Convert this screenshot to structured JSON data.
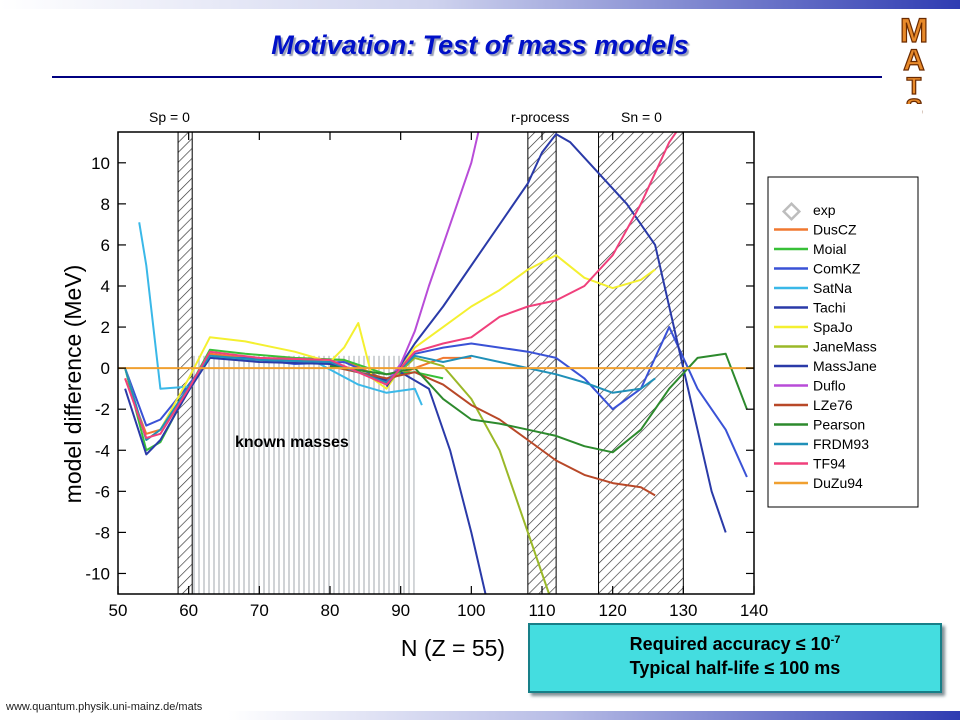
{
  "slide": {
    "title": "Motivation: Test of mass models",
    "logo_text": "MATS",
    "footer_url": "www.quantum.physik.uni-mainz.de/mats",
    "callout": {
      "line1_prefix": "Required accuracy ",
      "line1_sym": "≤",
      "line1_base": " 10",
      "line1_exp": "-7",
      "line2_prefix": "Typical half-life ",
      "line2_sym": "≤",
      "line2_rest": " 100 ms"
    },
    "accent_colors": {
      "title": "#0010c8",
      "callout_bg": "#44dde0",
      "bar": "#2f3cb2"
    }
  },
  "chart_data": {
    "type": "line",
    "xlabel": "N (Z = 55)",
    "ylabel": "model difference (MeV)",
    "xlim": [
      50,
      140
    ],
    "ylim": [
      -11,
      11.5
    ],
    "xticks": [
      50,
      60,
      70,
      80,
      90,
      100,
      110,
      120,
      130,
      140
    ],
    "yticks": [
      -10,
      -8,
      -6,
      -4,
      -2,
      0,
      2,
      4,
      6,
      8,
      10
    ],
    "grid": false,
    "legend_position": "right",
    "annotations": {
      "sp_label": "Sp = 0",
      "rprocess_label": "r-process",
      "sn_label": "Sn = 0",
      "known_label": "known masses"
    },
    "regions": [
      {
        "name": "Sp = 0",
        "x": [
          58.5,
          60.5
        ],
        "style": "hatched"
      },
      {
        "name": "known masses",
        "x": [
          60.5,
          92
        ],
        "style": "grey"
      },
      {
        "name": "r-process",
        "x": [
          108,
          112
        ],
        "style": "hatched"
      },
      {
        "name": "Sn = 0",
        "x": [
          118,
          130
        ],
        "style": "hatched"
      }
    ],
    "series": [
      {
        "name": "exp",
        "color": "#bdbdbd",
        "points": []
      },
      {
        "name": "DusCZ",
        "color": "#f07830",
        "points": [
          [
            51,
            -0.5
          ],
          [
            54,
            -3.2
          ],
          [
            56,
            -3
          ],
          [
            60,
            -1
          ],
          [
            63,
            0.7
          ],
          [
            68,
            0.5
          ],
          [
            75,
            0.4
          ],
          [
            82,
            0.4
          ],
          [
            88,
            -0.6
          ],
          [
            92,
            0
          ],
          [
            96,
            0.5
          ],
          [
            100,
            0.5
          ]
        ]
      },
      {
        "name": "Moial",
        "color": "#38c038",
        "points": [
          [
            51,
            0
          ],
          [
            54,
            -4
          ],
          [
            56,
            -3.6
          ],
          [
            60,
            -1
          ],
          [
            63,
            0.9
          ],
          [
            68,
            0.7
          ],
          [
            75,
            0.5
          ],
          [
            82,
            0.4
          ],
          [
            88,
            -0.3
          ],
          [
            92,
            -0.2
          ],
          [
            96,
            -0.5
          ]
        ]
      },
      {
        "name": "ComKZ",
        "color": "#3a52d6",
        "points": [
          [
            51,
            0
          ],
          [
            54,
            -2.8
          ],
          [
            56,
            -2.5
          ],
          [
            60,
            -0.8
          ],
          [
            63,
            0.5
          ],
          [
            68,
            0.5
          ],
          [
            75,
            0.2
          ],
          [
            82,
            0.3
          ],
          [
            88,
            -0.6
          ],
          [
            92,
            0.7
          ],
          [
            96,
            1
          ],
          [
            100,
            1.2
          ],
          [
            104,
            1
          ],
          [
            108,
            0.8
          ],
          [
            112,
            0.5
          ],
          [
            116,
            -0.5
          ],
          [
            120,
            -2
          ],
          [
            124,
            -1
          ],
          [
            128,
            2
          ],
          [
            132,
            -1
          ],
          [
            136,
            -3
          ],
          [
            139,
            -5.3
          ]
        ]
      },
      {
        "name": "SatNa",
        "color": "#3ab8e8",
        "points": [
          [
            53,
            7.1
          ],
          [
            54,
            5
          ],
          [
            56,
            -1
          ],
          [
            60,
            -0.9
          ],
          [
            63,
            0.5
          ],
          [
            70,
            0.4
          ],
          [
            78,
            0.3
          ],
          [
            84,
            -0.8
          ],
          [
            88,
            -1.2
          ],
          [
            92,
            -1
          ],
          [
            93,
            -1.8
          ]
        ]
      },
      {
        "name": "Tachi",
        "color": "#2a3aa8",
        "points": [
          [
            51,
            -1
          ],
          [
            54,
            -4.2
          ],
          [
            56,
            -3.5
          ],
          [
            60,
            -1.1
          ],
          [
            63,
            0.5
          ],
          [
            70,
            0.3
          ],
          [
            80,
            0.2
          ],
          [
            88,
            -0.6
          ],
          [
            90,
            -0.2
          ],
          [
            94,
            -1
          ],
          [
            97,
            -4
          ],
          [
            100,
            -8
          ],
          [
            102,
            -11
          ]
        ]
      },
      {
        "name": "SpaJo",
        "color": "#f4f030",
        "points": [
          [
            51,
            0
          ],
          [
            54,
            -3.5
          ],
          [
            56,
            -3
          ],
          [
            60,
            -0.5
          ],
          [
            63,
            1.5
          ],
          [
            68,
            1.3
          ],
          [
            75,
            0.8
          ],
          [
            80,
            0.3
          ],
          [
            82,
            1
          ],
          [
            84,
            2.2
          ],
          [
            86,
            -0.5
          ],
          [
            88,
            -1
          ],
          [
            92,
            1
          ],
          [
            96,
            2
          ],
          [
            100,
            3
          ],
          [
            104,
            3.8
          ],
          [
            108,
            4.8
          ],
          [
            112,
            5.5
          ],
          [
            116,
            4.4
          ],
          [
            120,
            3.9
          ],
          [
            124,
            4.3
          ],
          [
            126,
            4.8
          ]
        ]
      },
      {
        "name": "JaneMass",
        "color": "#9ab828",
        "points": [
          [
            88,
            -0.8
          ],
          [
            92,
            0.5
          ],
          [
            96,
            0.1
          ],
          [
            100,
            -1.5
          ],
          [
            104,
            -4
          ],
          [
            108,
            -8
          ],
          [
            110,
            -10
          ],
          [
            111,
            -11
          ]
        ]
      },
      {
        "name": "MassJane",
        "color": "#2a3aa8",
        "points": [
          [
            88,
            -0.9
          ],
          [
            92,
            1.2
          ],
          [
            96,
            3
          ],
          [
            100,
            5
          ],
          [
            104,
            7
          ],
          [
            108,
            9
          ],
          [
            110,
            10.5
          ],
          [
            112,
            11.4
          ],
          [
            114,
            11
          ],
          [
            118,
            9.5
          ],
          [
            122,
            8
          ],
          [
            126,
            6
          ],
          [
            128,
            3
          ],
          [
            130,
            0
          ],
          [
            132,
            -3
          ],
          [
            134,
            -6
          ],
          [
            136,
            -8
          ]
        ]
      },
      {
        "name": "Duflo",
        "color": "#b84cd8",
        "points": [
          [
            88,
            -0.7
          ],
          [
            90,
            0.2
          ],
          [
            92,
            1.8
          ],
          [
            94,
            4
          ],
          [
            96,
            6
          ],
          [
            98,
            8
          ],
          [
            100,
            10
          ],
          [
            101,
            11.5
          ]
        ]
      },
      {
        "name": "LZe76",
        "color": "#b84828",
        "points": [
          [
            80,
            0.1
          ],
          [
            88,
            -0.5
          ],
          [
            92,
            -0.2
          ],
          [
            96,
            -0.8
          ],
          [
            100,
            -1.8
          ],
          [
            104,
            -2.5
          ],
          [
            108,
            -3.5
          ],
          [
            112,
            -4.5
          ],
          [
            116,
            -5.2
          ],
          [
            120,
            -5.6
          ],
          [
            124,
            -5.8
          ],
          [
            126,
            -6.2
          ]
        ]
      },
      {
        "name": "Pearson",
        "color": "#2d8a2d",
        "points": [
          [
            80,
            0.1
          ],
          [
            88,
            -0.3
          ],
          [
            92,
            0
          ],
          [
            96,
            -1.5
          ],
          [
            100,
            -2.5
          ],
          [
            104,
            -2.7
          ],
          [
            108,
            -3
          ],
          [
            112,
            -3.3
          ],
          [
            116,
            -3.8
          ],
          [
            120,
            -4.1
          ],
          [
            124,
            -3
          ],
          [
            128,
            -1
          ],
          [
            132,
            0.5
          ],
          [
            136,
            0.7
          ],
          [
            139,
            -2
          ]
        ]
      },
      {
        "name": "FRDM93",
        "color": "#2090b8",
        "points": [
          [
            51,
            0
          ],
          [
            54,
            -3.5
          ],
          [
            56,
            -3
          ],
          [
            60,
            -0.9
          ],
          [
            63,
            0.6
          ],
          [
            70,
            0.4
          ],
          [
            80,
            0.3
          ],
          [
            88,
            -0.7
          ],
          [
            92,
            0.6
          ],
          [
            96,
            0.3
          ],
          [
            100,
            0.6
          ],
          [
            104,
            0.3
          ],
          [
            108,
            0
          ],
          [
            112,
            -0.3
          ],
          [
            116,
            -0.7
          ],
          [
            120,
            -1.2
          ],
          [
            124,
            -1
          ],
          [
            126,
            -0.5
          ]
        ]
      },
      {
        "name": "TF94",
        "color": "#f0407c",
        "points": [
          [
            51,
            -0.5
          ],
          [
            54,
            -3.4
          ],
          [
            56,
            -3.2
          ],
          [
            60,
            -1
          ],
          [
            63,
            0.8
          ],
          [
            70,
            0.5
          ],
          [
            80,
            0.4
          ],
          [
            88,
            -0.8
          ],
          [
            92,
            0.8
          ],
          [
            96,
            1.2
          ],
          [
            100,
            1.5
          ],
          [
            104,
            2.5
          ],
          [
            108,
            3
          ],
          [
            112,
            3.3
          ],
          [
            116,
            4
          ],
          [
            120,
            5.5
          ],
          [
            124,
            8
          ],
          [
            128,
            11
          ],
          [
            129,
            11.5
          ]
        ]
      },
      {
        "name": "DuZu94",
        "color": "#f0a030",
        "points": [
          [
            50,
            0
          ],
          [
            140,
            0
          ]
        ]
      }
    ]
  }
}
